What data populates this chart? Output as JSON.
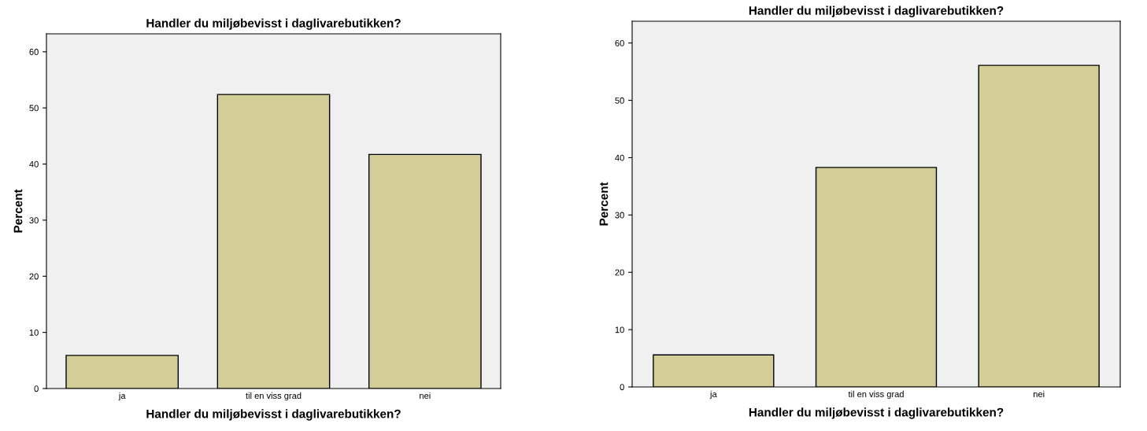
{
  "chart_data": [
    {
      "type": "bar",
      "title": "Handler du miljøbevisst i daglivarebutikken?",
      "xlabel": "Handler du miljøbevisst i daglivarebutikken?",
      "ylabel": "Percent",
      "categories": [
        "ja",
        "til en viss grad",
        "nei"
      ],
      "values": [
        5.9,
        52.4,
        41.7
      ],
      "color": "#d3ce98",
      "ylim": [
        0,
        63.2
      ],
      "yticks": [
        0,
        10,
        20,
        30,
        40,
        50,
        60
      ],
      "grid": false
    },
    {
      "type": "bar",
      "title": "Handler du miljøbevisst i daglivarebutikken?",
      "xlabel": "Handler du miljøbevisst i daglivarebutikken?",
      "ylabel": "Percent",
      "categories": [
        "ja",
        "til en viss grad",
        "nei"
      ],
      "values": [
        5.6,
        38.3,
        56.1
      ],
      "color": "#d3ce98",
      "ylim": [
        0,
        63.8
      ],
      "yticks": [
        0,
        10,
        20,
        30,
        40,
        50,
        60
      ],
      "grid": false
    }
  ]
}
